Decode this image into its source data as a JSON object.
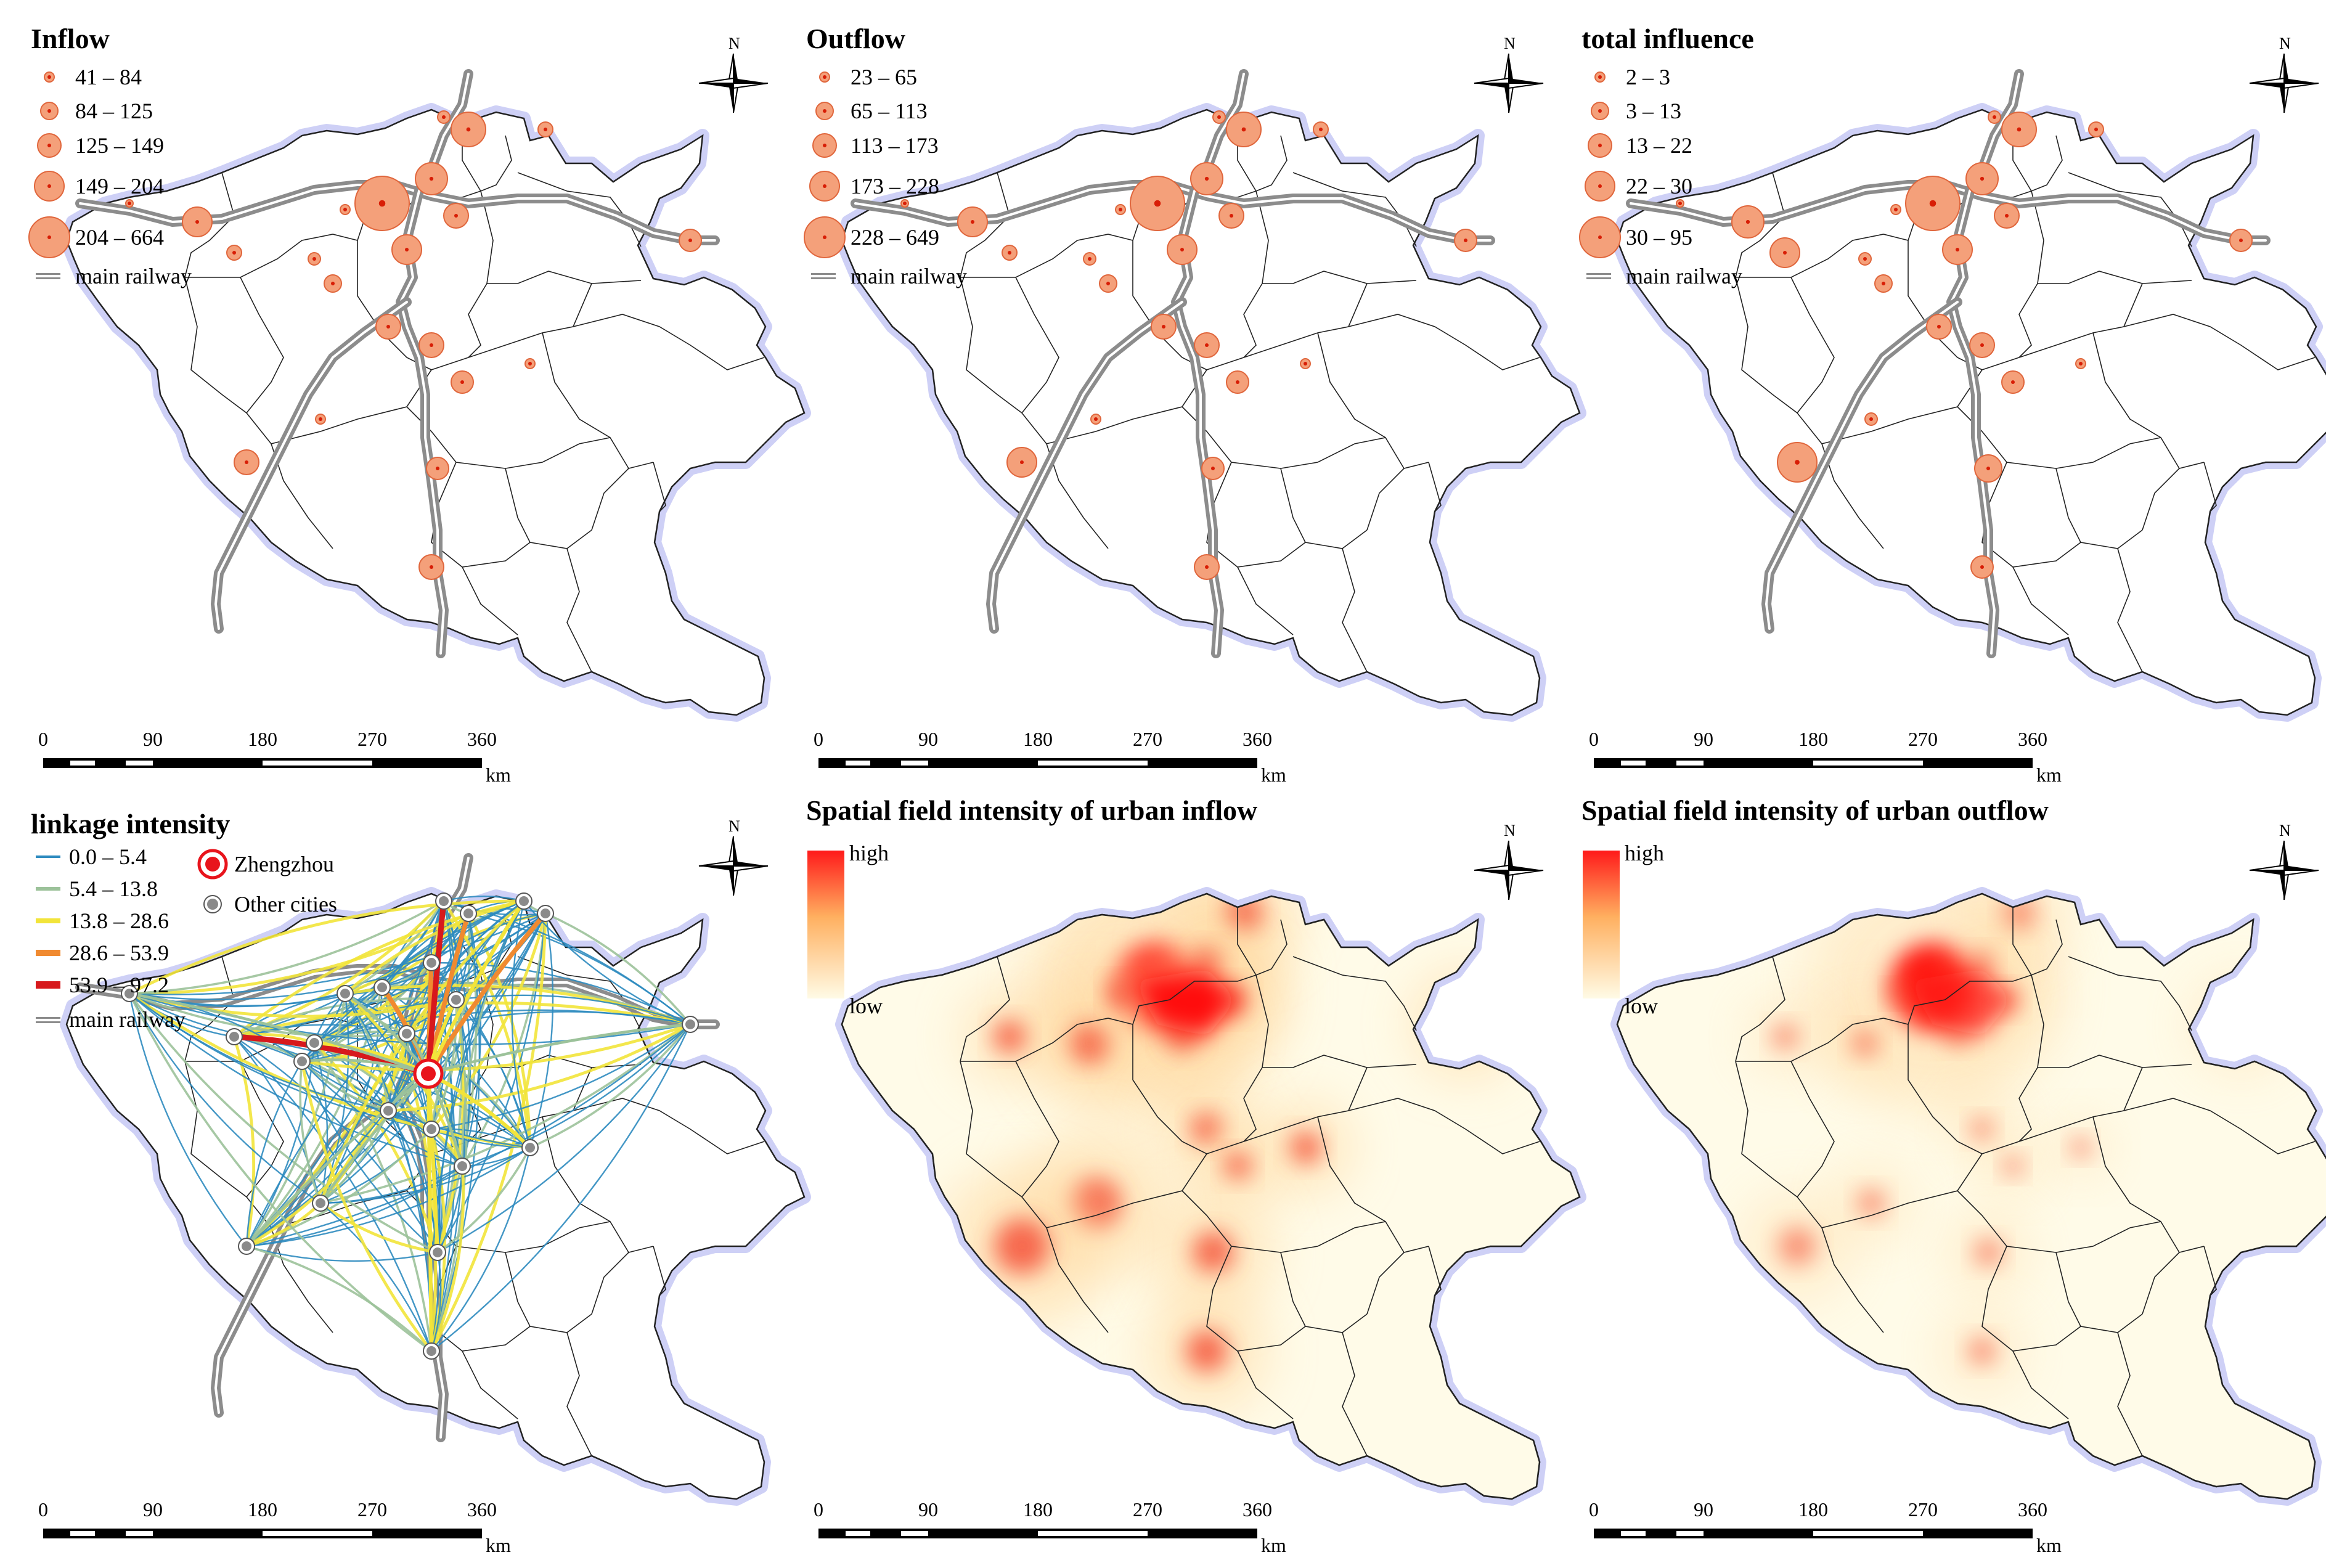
{
  "colors": {
    "circle_fill": "#f4a07a",
    "circle_stroke": "#e0663c",
    "dot": "#d81e06",
    "halo": "#c9cbf5",
    "railway": "#8c8c8c",
    "zhengzhou": "#e8141c",
    "other_city": "#8a8a8a"
  },
  "scale_bar": {
    "ticks": [
      "0",
      "90",
      "180",
      "270",
      "360"
    ],
    "unit": "km"
  },
  "north_arrow": {
    "label": "N"
  },
  "panels": [
    {
      "id": "inflow",
      "title": "Inflow",
      "legend_classes": [
        "41 – 84",
        "84 – 125",
        "125 – 149",
        "149 – 204",
        "204 – 664"
      ],
      "railway_label": "main railway"
    },
    {
      "id": "outflow",
      "title": "Outflow",
      "legend_classes": [
        "23 – 65",
        "65 – 113",
        "113 – 173",
        "173 – 228",
        "228 – 649"
      ],
      "railway_label": "main railway"
    },
    {
      "id": "total-influence",
      "title": "total influence",
      "legend_classes": [
        "2 – 3",
        "3 – 13",
        "13 – 22",
        "22 – 30",
        "30 – 95"
      ],
      "railway_label": "main railway"
    },
    {
      "id": "linkage-intensity",
      "title": "linkage intensity",
      "line_classes": [
        {
          "label": "0.0 – 5.4",
          "color": "#2e8bbf"
        },
        {
          "label": "5.4 – 13.8",
          "color": "#9cc29a"
        },
        {
          "label": "13.8 – 28.6",
          "color": "#f2e43a"
        },
        {
          "label": "28.6 – 53.9",
          "color": "#f08a30"
        },
        {
          "label": "53.9 – 97.2",
          "color": "#d7191c"
        }
      ],
      "zhengzhou_label": "Zhengzhou",
      "other_cities_label": "Other cities",
      "railway_label": "main railway"
    },
    {
      "id": "spatial-inflow",
      "title": "Spatial field intensity of urban inflow",
      "gradient_high": "high",
      "gradient_low": "low"
    },
    {
      "id": "spatial-outflow",
      "title": "Spatial field intensity of urban outflow",
      "gradient_high": "high",
      "gradient_low": "low"
    }
  ]
}
